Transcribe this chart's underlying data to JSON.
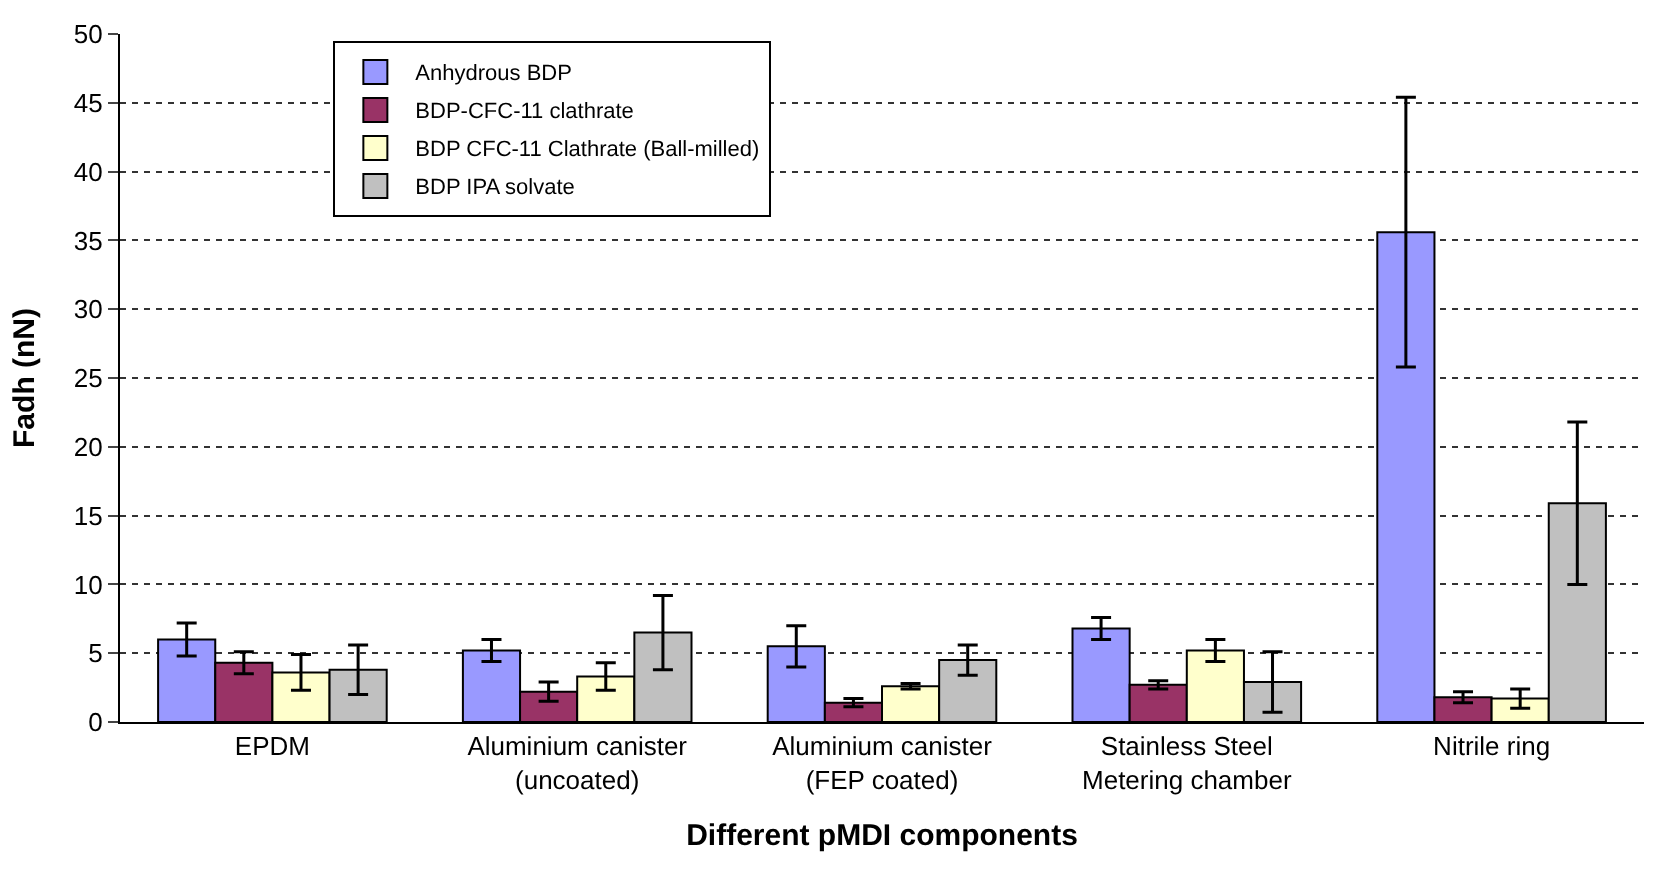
{
  "chart_data": {
    "type": "bar",
    "xlabel": "Different pMDI components",
    "ylabel": "Fadh (nN)",
    "categories": [
      "EPDM",
      "Aluminium canister\n(uncoated)",
      "Aluminium canister\n(FEP coated)",
      "Stainless Steel\nMetering chamber",
      "Nitrile ring"
    ],
    "series": [
      {
        "name": "Anhydrous BDP",
        "color": "#9999ff",
        "values": [
          6.0,
          5.2,
          5.5,
          6.8,
          35.6
        ],
        "errors": [
          1.2,
          0.8,
          1.5,
          0.8,
          9.8
        ]
      },
      {
        "name": "BDP-CFC-11 clathrate",
        "color": "#993366",
        "values": [
          4.3,
          2.2,
          1.4,
          2.7,
          1.8
        ],
        "errors": [
          0.8,
          0.7,
          0.3,
          0.3,
          0.4
        ]
      },
      {
        "name": "BDP CFC-11 Clathrate (Ball-milled)",
        "color": "#ffffcc",
        "values": [
          3.6,
          3.3,
          2.6,
          5.2,
          1.7
        ],
        "errors": [
          1.3,
          1.0,
          0.2,
          0.8,
          0.7
        ]
      },
      {
        "name": "BDP IPA solvate",
        "color": "#c0c0c0",
        "values": [
          3.8,
          6.5,
          4.5,
          2.9,
          15.9
        ],
        "errors": [
          1.8,
          2.7,
          1.1,
          2.2,
          5.9
        ]
      }
    ],
    "ylim": [
      0,
      50
    ],
    "yticks": [
      0,
      5,
      10,
      15,
      20,
      25,
      30,
      35,
      40,
      45,
      50
    ],
    "grid": "y",
    "legend": "top left"
  }
}
